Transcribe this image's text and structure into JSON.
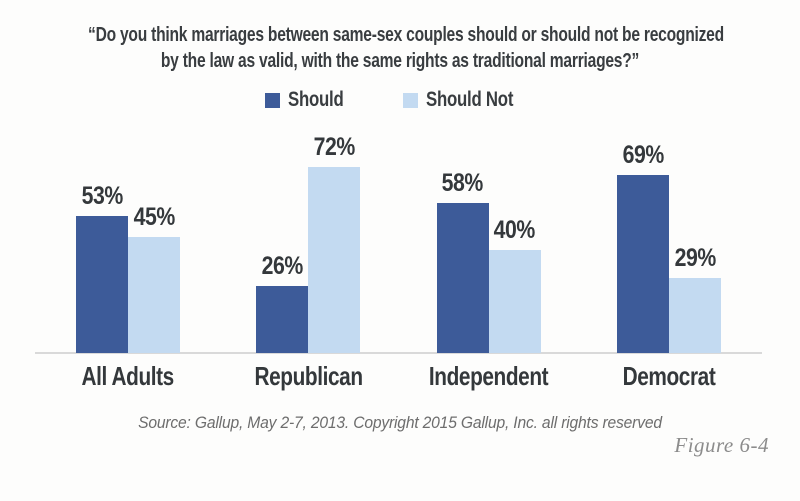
{
  "title": {
    "line1": "“Do you think marriages between same-sex couples should or should not be recognized",
    "line2": "by the law as valid, with the same rights as traditional marriages?”"
  },
  "legend": [
    {
      "label": "Should",
      "color": "#3d5b99"
    },
    {
      "label": "Should Not",
      "color": "#c3daf1"
    }
  ],
  "source": "Source: Gallup, May 2-7, 2013. Copyright 2015 Gallup, Inc. all rights reserved",
  "figure_label": "Figure 6-4",
  "chart_data": {
    "type": "bar",
    "title": "Do you think marriages between same-sex couples should or should not be recognized by the law as valid, with the same rights as traditional marriages?",
    "categories": [
      "All Adults",
      "Republican",
      "Independent",
      "Democrat"
    ],
    "series": [
      {
        "name": "Should",
        "color": "#3d5b99",
        "values": [
          53,
          26,
          58,
          69
        ],
        "labels": [
          "53%",
          "26%",
          "58%",
          "69%"
        ]
      },
      {
        "name": "Should Not",
        "color": "#c3daf1",
        "values": [
          45,
          72,
          40,
          29
        ],
        "labels": [
          "45%",
          "72%",
          "40%",
          "29%"
        ]
      }
    ],
    "value_unit": "%",
    "ylim": [
      0,
      100
    ],
    "axes_visible": false,
    "grid": false,
    "legend_position": "top",
    "value_labels": "above bars"
  }
}
